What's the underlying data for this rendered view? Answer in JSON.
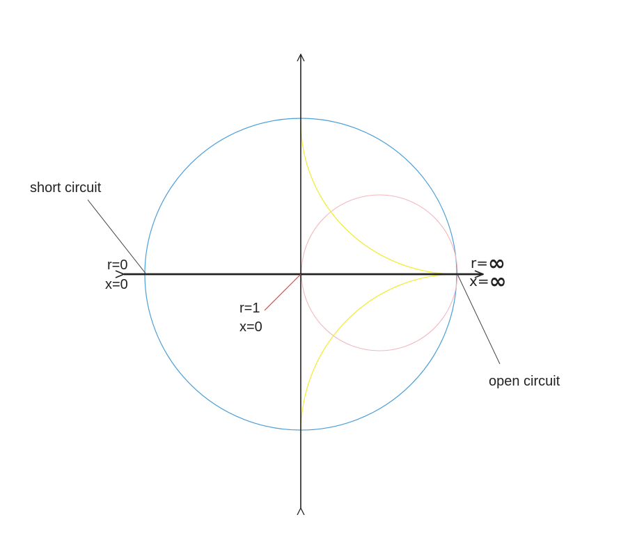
{
  "labels": {
    "short_circuit": "short circuit",
    "open_circuit": "open circuit",
    "short_r": "r=0",
    "short_x": "x=0",
    "center_r": "r=1",
    "center_x": "x=0",
    "open_r_prefix": "r=",
    "open_x_prefix": "x=",
    "infinity": "∞"
  },
  "colors": {
    "outer_circle": "#4a9fd8",
    "r1_circle": "#f2b8bd",
    "x_arcs": "#f2ec3a",
    "center_pointer": "#e04848",
    "axes": "#222222",
    "leader_lines": "#444444"
  }
}
